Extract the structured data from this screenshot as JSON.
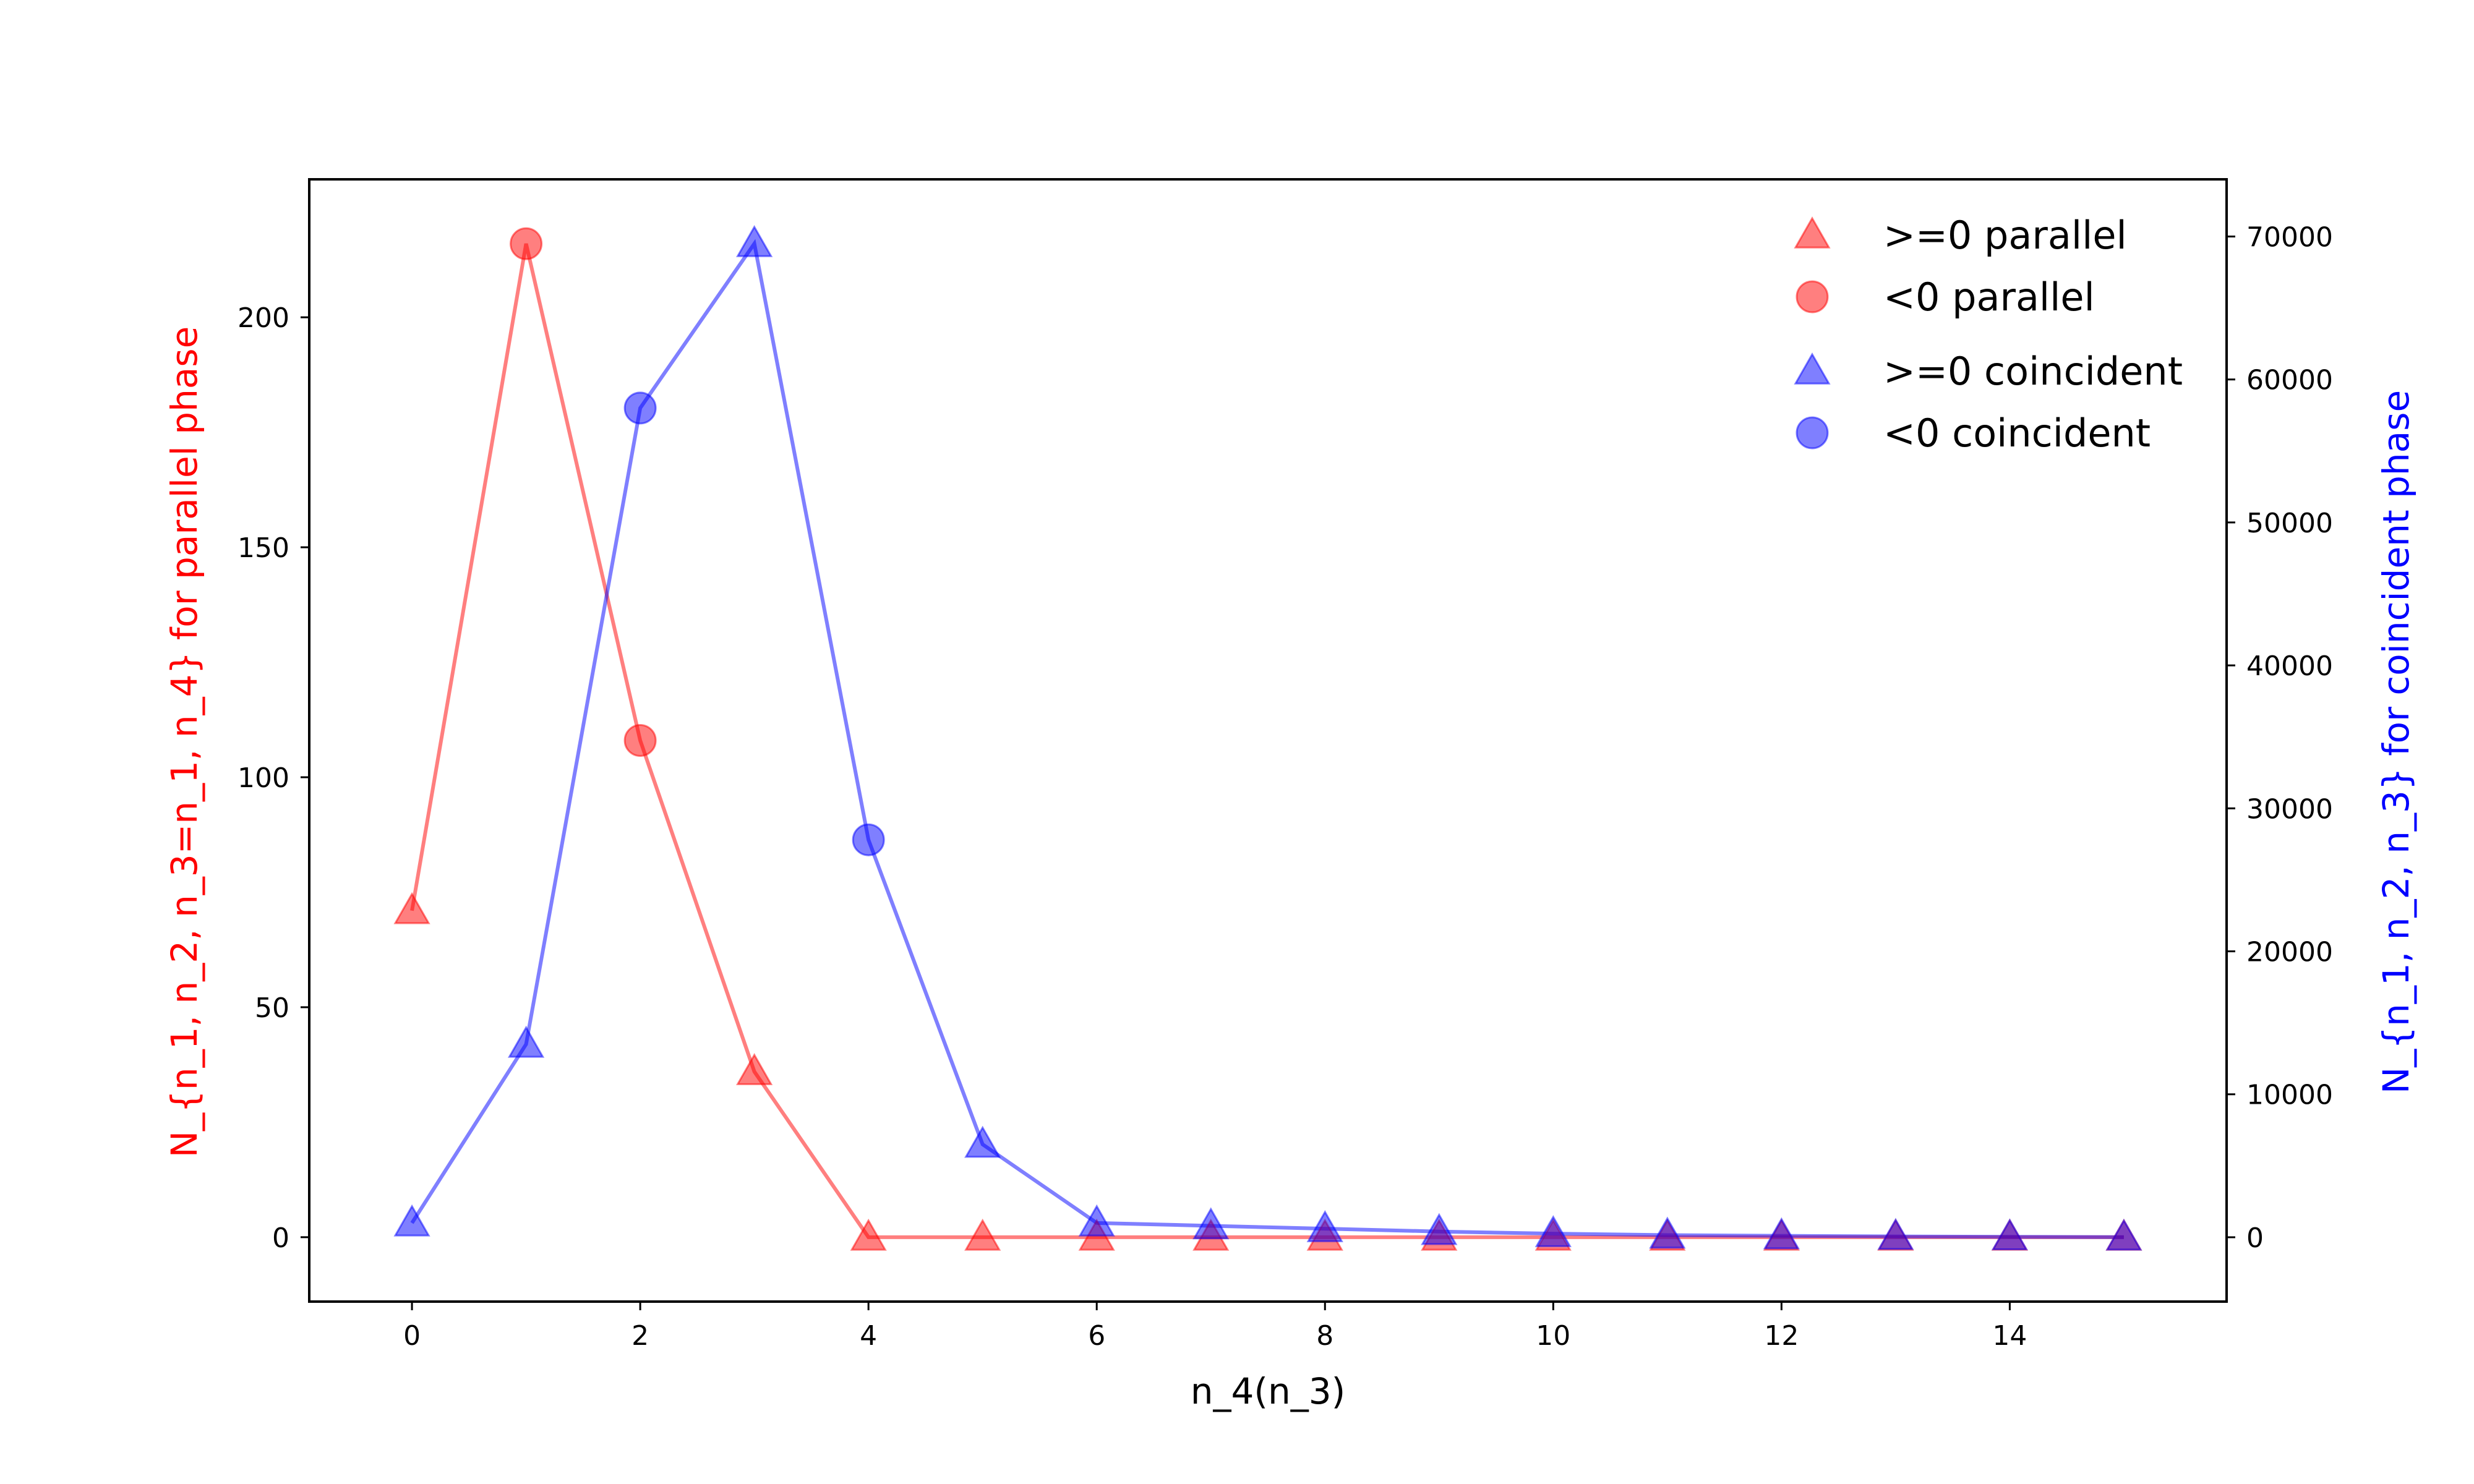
{
  "chart_data": {
    "type": "line",
    "xlabel": "n_4(n_3)",
    "ylabel_left": "N_{n_1, n_2, n_3=n_1, n_4} for parallel phase",
    "ylabel_right": "N_{n_1, n_2, n_3} for coincident phase",
    "xlim": [
      -0.9,
      15.9
    ],
    "ylim_left": [
      -14,
      230
    ],
    "ylim_right": [
      -4500,
      74000
    ],
    "x_ticks": [
      0,
      2,
      4,
      6,
      8,
      10,
      12,
      14
    ],
    "y_ticks_left": [
      0,
      50,
      100,
      150,
      200
    ],
    "y_ticks_right": [
      0,
      10000,
      20000,
      30000,
      40000,
      50000,
      60000,
      70000
    ],
    "legend_position": "top-right",
    "x": [
      0,
      1,
      2,
      3,
      4,
      5,
      6,
      7,
      8,
      9,
      10,
      11,
      12,
      13,
      14,
      15
    ],
    "series": [
      {
        "name": "parallel",
        "axis": "left",
        "color": "#ff0000",
        "values": [
          71,
          216,
          108,
          36,
          0,
          0,
          0,
          0,
          0,
          0,
          0,
          0,
          0,
          0,
          0,
          0
        ],
        "markers": [
          "triangle",
          "circle",
          "circle",
          "triangle",
          "triangle",
          "triangle",
          "triangle",
          "triangle",
          "triangle",
          "triangle",
          "triangle",
          "triangle",
          "triangle",
          "triangle",
          "triangle",
          "triangle"
        ]
      },
      {
        "name": "coincident",
        "axis": "right",
        "color": "#0000ff",
        "values": [
          1000,
          13500,
          58000,
          69500,
          27800,
          6500,
          1000,
          800,
          600,
          400,
          250,
          150,
          100,
          60,
          30,
          10
        ],
        "markers": [
          "triangle",
          "triangle",
          "circle",
          "triangle",
          "circle",
          "triangle",
          "triangle",
          "triangle",
          "triangle",
          "triangle",
          "triangle",
          "triangle",
          "triangle",
          "triangle",
          "triangle",
          "triangle"
        ]
      }
    ],
    "legend": [
      {
        "label": ">=0 parallel",
        "marker": "triangle",
        "color": "#ff0000"
      },
      {
        "label": "<0 parallel",
        "marker": "circle",
        "color": "#ff0000"
      },
      {
        "label": ">=0 coincident",
        "marker": "triangle",
        "color": "#0000ff"
      },
      {
        "label": "<0 coincident",
        "marker": "circle",
        "color": "#0000ff"
      }
    ]
  }
}
